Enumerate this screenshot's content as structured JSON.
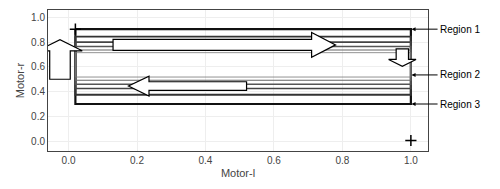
{
  "chart_data": {
    "type": "line",
    "xlabel": "Motor-l",
    "ylabel": "Motor-r",
    "xlim": [
      -0.06,
      1.05
    ],
    "ylim": [
      -0.08,
      1.06
    ],
    "xticks": [
      {
        "value": 0.0,
        "label": "0.0"
      },
      0.2,
      0.4,
      0.6,
      0.8,
      {
        "value": 1.0,
        "label": "1.0"
      }
    ],
    "yticks": [
      {
        "value": 0.0,
        "label": "0.0"
      },
      0.2,
      0.4,
      0.6,
      0.8,
      {
        "value": 1.0,
        "label": "1.0"
      }
    ],
    "grid": true,
    "series": [
      {
        "color": "#111111",
        "x": [
          0.02,
          1.0,
          1.0,
          0.02,
          0.02
        ],
        "values": [
          0.905,
          0.905,
          0.3,
          0.3,
          0.905
        ]
      },
      {
        "color": "#333333",
        "x": [
          0.02,
          1.0,
          1.0,
          0.02,
          0.02
        ],
        "values": [
          0.845,
          0.845,
          0.375,
          0.375,
          0.845
        ]
      },
      {
        "color": "#444444",
        "x": [
          0.02,
          1.0,
          1.0,
          0.02,
          0.02
        ],
        "values": [
          0.8,
          0.8,
          0.425,
          0.425,
          0.8
        ]
      },
      {
        "color": "#555555",
        "x": [
          0.02,
          1.0,
          1.0,
          0.02,
          0.02
        ],
        "values": [
          0.765,
          0.765,
          0.46,
          0.46,
          0.765
        ]
      },
      {
        "color": "#666666",
        "x": [
          0.02,
          1.0,
          1.0,
          0.02,
          0.02
        ],
        "values": [
          0.737,
          0.737,
          0.492,
          0.492,
          0.737
        ]
      },
      {
        "color": "#777777",
        "x": [
          0.02,
          1.0,
          1.0,
          0.02,
          0.02
        ],
        "values": [
          0.715,
          0.715,
          0.518,
          0.518,
          0.715
        ]
      }
    ],
    "arrows": [
      {
        "direction": "up",
        "x_center": -0.025,
        "y_bottom": 0.5,
        "y_top": 0.82,
        "shaft_width": 0.03,
        "head_width": 0.065,
        "head_length": 0.09
      },
      {
        "direction": "right",
        "x_left": 0.13,
        "x_right": 0.78,
        "y_center": 0.778,
        "shaft_height": 0.045,
        "head_height": 0.1,
        "head_length": 0.07
      },
      {
        "direction": "left",
        "x_left": 0.175,
        "x_right": 0.52,
        "y_center": 0.445,
        "shaft_height": 0.035,
        "head_height": 0.08,
        "head_length": 0.06
      },
      {
        "direction": "down",
        "x_center": 0.975,
        "y_top": 0.745,
        "y_bottom": 0.605,
        "shaft_width": 0.018,
        "head_width": 0.04,
        "head_length": 0.055
      }
    ],
    "points": {
      "x": [
        0.02,
        1.0
      ],
      "values": [
        0.905,
        0.005
      ],
      "marker": "plus",
      "color": "#000000"
    },
    "annotations": [
      {
        "text": "Region 1",
        "x": 1.002,
        "y": 0.905
      },
      {
        "text": "Region 2",
        "x": 1.002,
        "y": 0.535
      },
      {
        "text": "Region 3",
        "x": 1.002,
        "y": 0.3
      }
    ]
  }
}
